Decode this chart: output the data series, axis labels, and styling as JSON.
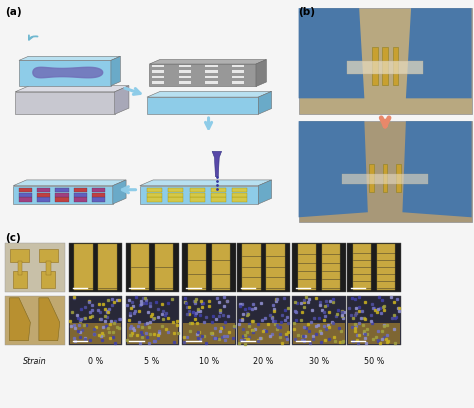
{
  "fig_width": 4.74,
  "fig_height": 4.08,
  "dpi": 100,
  "bg_color": "#f5f5f5",
  "panel_a_label": "(a)",
  "panel_b_label": "(b)",
  "panel_c_label": "(c)",
  "strain_labels": [
    "Strain",
    "0 %",
    "5 %",
    "10 %",
    "20 %",
    "30 %",
    "50 %"
  ],
  "blue_substrate": "#8ECCE8",
  "blue_substrate_top": "#B8E0F0",
  "blue_substrate_side": "#6AAAC8",
  "gray_base": "#C8C8D0",
  "gray_base_top": "#DCDCE4",
  "gray_base_side": "#A8A8B8",
  "purple_blob": "#7070B8",
  "mesh_gray": "#909090",
  "mesh_cell": "#E0E0E0",
  "needle_purple": "#5050A0",
  "arrow_blue": "#8ECCE8",
  "arrow_orange": "#E8886A",
  "yellow_comp": "#D4C848",
  "photo_bg1": "#B8A888",
  "photo_bg2": "#A89878",
  "glove_blue": "#4A7AAA",
  "top_row_bg1": "#C8B888",
  "top_row_dark": "#282828",
  "top_row_gold": "#C8A840",
  "bot_row_bg1": "#C09850",
  "bot_row_dark": "#181828",
  "bot_gold": "#B89030"
}
